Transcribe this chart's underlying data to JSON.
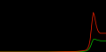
{
  "background_color": "#000000",
  "line_color_upper": "#ff2200",
  "line_color_lower": "#00cc00",
  "figsize": [
    1.2,
    0.59
  ],
  "dpi": 100,
  "xlim": [
    0,
    1
  ],
  "ylim": [
    0,
    1
  ],
  "linewidth": 0.5,
  "t": [
    0.0,
    0.05,
    0.1,
    0.15,
    0.2,
    0.25,
    0.3,
    0.35,
    0.4,
    0.45,
    0.5,
    0.53,
    0.56,
    0.59,
    0.62,
    0.65,
    0.67,
    0.69,
    0.71,
    0.73,
    0.75,
    0.77,
    0.79,
    0.81,
    0.82,
    0.83,
    0.84,
    0.85,
    0.86,
    0.87,
    0.88,
    0.89,
    0.9,
    0.91,
    0.92,
    0.93,
    0.94,
    0.95,
    0.96,
    0.97,
    0.98,
    0.99,
    1.0
  ],
  "upper": [
    0.0,
    0.0,
    0.0,
    0.0,
    0.0,
    0.0,
    0.0,
    0.0,
    0.0,
    0.0,
    0.002,
    0.003,
    0.004,
    0.005,
    0.006,
    0.007,
    0.008,
    0.009,
    0.011,
    0.013,
    0.016,
    0.02,
    0.025,
    0.035,
    0.05,
    0.08,
    0.13,
    0.23,
    0.42,
    0.62,
    0.76,
    0.7,
    0.6,
    0.5,
    0.43,
    0.39,
    0.37,
    0.36,
    0.36,
    0.36,
    0.36,
    0.36,
    0.36
  ],
  "lower": [
    0.0,
    0.0,
    0.0,
    0.0,
    0.0,
    0.0,
    0.0,
    0.0,
    0.0,
    0.0,
    0.001,
    0.001,
    0.002,
    0.002,
    0.003,
    0.003,
    0.004,
    0.005,
    0.006,
    0.007,
    0.008,
    0.01,
    0.013,
    0.018,
    0.025,
    0.038,
    0.058,
    0.09,
    0.14,
    0.2,
    0.24,
    0.25,
    0.245,
    0.235,
    0.23,
    0.225,
    0.22,
    0.215,
    0.215,
    0.215,
    0.215,
    0.215,
    0.215
  ]
}
